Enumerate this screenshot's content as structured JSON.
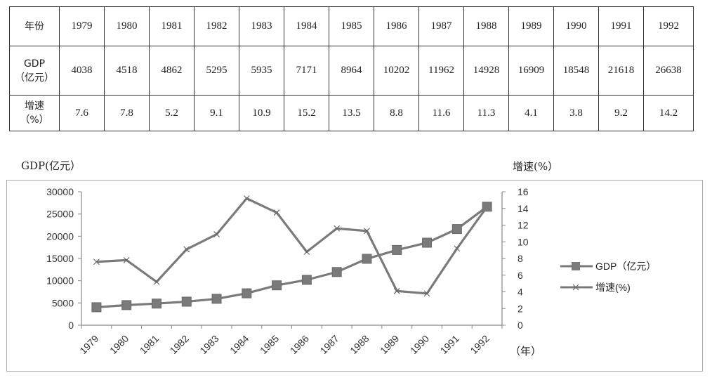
{
  "table": {
    "header_row": {
      "label": "年份",
      "values": [
        "1979",
        "1980",
        "1981",
        "1982",
        "1983",
        "1984",
        "1985",
        "1986",
        "1987",
        "1988",
        "1989",
        "1990",
        "1991",
        "1992"
      ]
    },
    "gdp_row": {
      "label_line1": "GDP",
      "label_line2": "（亿元）",
      "values": [
        "4038",
        "4518",
        "4862",
        "5295",
        "5935",
        "7171",
        "8964",
        "10202",
        "11962",
        "14928",
        "16909",
        "18548",
        "21618",
        "26638"
      ]
    },
    "rate_row": {
      "label_line1": "增速",
      "label_line2": "（%）",
      "values": [
        "7.6",
        "7.8",
        "5.2",
        "9.1",
        "10.9",
        "15.2",
        "13.5",
        "8.8",
        "11.6",
        "11.3",
        "4.1",
        "3.8",
        "9.2",
        "14.2"
      ]
    }
  },
  "chart_data": {
    "type": "line",
    "categories": [
      "1979",
      "1980",
      "1981",
      "1982",
      "1983",
      "1984",
      "1985",
      "1986",
      "1987",
      "1988",
      "1989",
      "1990",
      "1991",
      "1992"
    ],
    "series": [
      {
        "name": "GDP（亿元）",
        "axis": "left",
        "marker": "square",
        "color": "#7a7a7a",
        "values": [
          4038,
          4518,
          4862,
          5295,
          5935,
          7171,
          8964,
          10202,
          11962,
          14928,
          16909,
          18548,
          21618,
          26638
        ]
      },
      {
        "name": "增速(%)",
        "axis": "right",
        "marker": "x",
        "color": "#7a7a7a",
        "values": [
          7.6,
          7.8,
          5.2,
          9.1,
          10.9,
          15.2,
          13.5,
          8.8,
          11.6,
          11.3,
          4.1,
          3.8,
          9.2,
          14.2
        ]
      }
    ],
    "ylabel": "GDP(亿元）",
    "y2label": "增速(%）",
    "xlabel": "（年）",
    "ylim": [
      0,
      30000
    ],
    "y2lim": [
      0,
      16
    ],
    "yticks": [
      0,
      5000,
      10000,
      15000,
      20000,
      25000,
      30000
    ],
    "y2ticks": [
      0,
      2,
      4,
      6,
      8,
      10,
      12,
      14,
      16
    ],
    "grid": false,
    "legend_position": "right"
  }
}
